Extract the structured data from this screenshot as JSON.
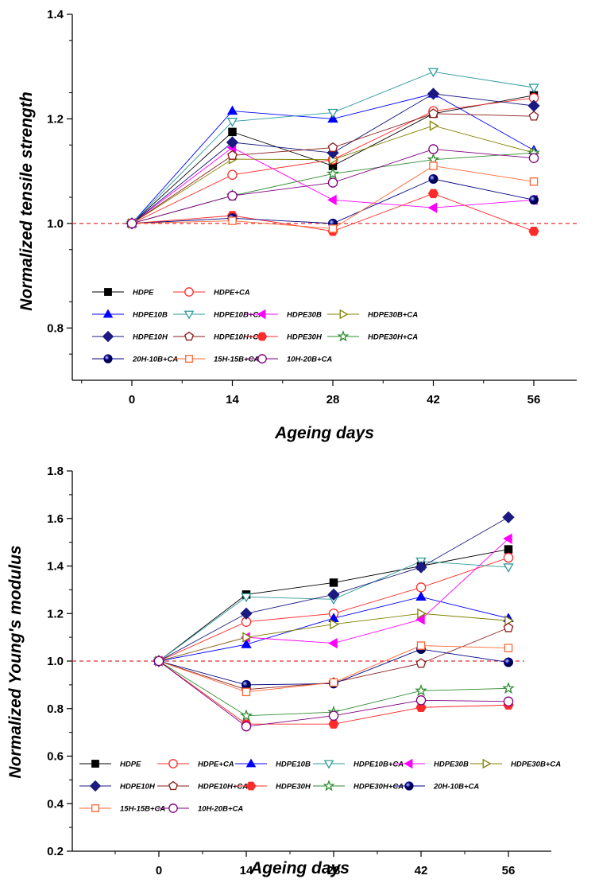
{
  "chart_data": [
    {
      "type": "line",
      "title": "",
      "xlabel": "Ageing days",
      "ylabel": "Normalized tensile strength",
      "x": [
        0,
        14,
        28,
        42,
        56
      ],
      "xlim": [
        -10,
        66
      ],
      "ylim": [
        0.7,
        1.4
      ],
      "x_ticks": [
        "0",
        "14",
        "28",
        "42",
        "56"
      ],
      "y_ticks": [
        "0.8",
        "1.0",
        "1.2",
        "1.4"
      ],
      "reference_line": 1.0,
      "grid": false,
      "legend_position": "lower-left",
      "series": [
        {
          "name": "HDPE",
          "marker": "square-filled",
          "color": "#000000",
          "values": [
            1.0,
            1.175,
            1.11,
            1.21,
            1.245
          ]
        },
        {
          "name": "HDPE+CA",
          "marker": "circle-open",
          "color": "#ff2a2a",
          "values": [
            1.0,
            1.093,
            1.122,
            1.215,
            1.24
          ]
        },
        {
          "name": "HDPE10B",
          "marker": "triangle-up-filled",
          "color": "#0000ff",
          "values": [
            1.0,
            1.215,
            1.2,
            1.248,
            1.14
          ]
        },
        {
          "name": "HDPE10B+CA",
          "marker": "triangle-down-open",
          "color": "#2e9a9a",
          "values": [
            1.0,
            1.195,
            1.212,
            1.29,
            1.26
          ]
        },
        {
          "name": "HDPE30B",
          "marker": "triangle-left-filled",
          "color": "#ff00ff",
          "values": [
            1.0,
            1.145,
            1.045,
            1.03,
            1.045
          ]
        },
        {
          "name": "HDPE30B+CA",
          "marker": "triangle-right-open",
          "color": "#808000",
          "values": [
            1.0,
            1.123,
            1.122,
            1.187,
            1.135
          ]
        },
        {
          "name": "HDPE10H",
          "marker": "diamond-filled",
          "color": "#1a1a80",
          "values": [
            1.0,
            1.155,
            1.135,
            1.248,
            1.225
          ]
        },
        {
          "name": "HDPE10H+CA",
          "marker": "pentagon-open",
          "color": "#8b1a1a",
          "values": [
            1.0,
            1.13,
            1.145,
            1.21,
            1.205
          ]
        },
        {
          "name": "HDPE30H",
          "marker": "hexagon-filled",
          "color": "#ff2a2a",
          "values": [
            1.0,
            1.015,
            0.985,
            1.057,
            0.985
          ]
        },
        {
          "name": "HDPE30H+CA",
          "marker": "star-open",
          "color": "#2e8b2e",
          "values": [
            1.0,
            1.053,
            1.095,
            1.122,
            1.135
          ]
        },
        {
          "name": "20H-10B+CA",
          "marker": "sphere-filled",
          "color": "#000080",
          "values": [
            1.0,
            1.01,
            1.0,
            1.085,
            1.045
          ]
        },
        {
          "name": "15H-15B+CA",
          "marker": "square-open",
          "color": "#ff6633",
          "values": [
            1.0,
            1.005,
            0.99,
            1.11,
            1.08
          ]
        },
        {
          "name": "10H-20B+CA",
          "marker": "circle-open",
          "color": "#800080",
          "values": [
            1.0,
            1.053,
            1.078,
            1.142,
            1.125
          ]
        }
      ]
    },
    {
      "type": "line",
      "title": "",
      "xlabel": "Ageing days",
      "ylabel": "Normalized Young's modulus",
      "x": [
        0,
        14,
        28,
        42,
        56
      ],
      "xlim": [
        -14,
        60
      ],
      "ylim": [
        0.2,
        1.8
      ],
      "x_ticks": [
        "0",
        "14",
        "28",
        "42",
        "56"
      ],
      "y_ticks": [
        "0.2",
        "0.4",
        "0.6",
        "0.8",
        "1.0",
        "1.2",
        "1.4",
        "1.6",
        "1.8"
      ],
      "reference_line": 1.0,
      "grid": false,
      "legend_position": "lower-left",
      "series": [
        {
          "name": "HDPE",
          "marker": "square-filled",
          "color": "#000000",
          "values": [
            1.0,
            1.28,
            1.33,
            1.4,
            1.47
          ]
        },
        {
          "name": "HDPE+CA",
          "marker": "circle-open",
          "color": "#ff2a2a",
          "values": [
            1.0,
            1.165,
            1.2,
            1.31,
            1.435
          ]
        },
        {
          "name": "HDPE10B",
          "marker": "triangle-up-filled",
          "color": "#0000ff",
          "values": [
            1.0,
            1.07,
            1.18,
            1.27,
            1.18
          ]
        },
        {
          "name": "HDPE10B+CA",
          "marker": "triangle-down-open",
          "color": "#2e9a9a",
          "values": [
            1.0,
            1.27,
            1.26,
            1.42,
            1.395
          ]
        },
        {
          "name": "HDPE30B",
          "marker": "triangle-left-filled",
          "color": "#ff00ff",
          "values": [
            1.0,
            1.1,
            1.075,
            1.175,
            1.515
          ]
        },
        {
          "name": "HDPE30B+CA",
          "marker": "triangle-right-open",
          "color": "#808000",
          "values": [
            1.0,
            1.1,
            1.155,
            1.2,
            1.17
          ]
        },
        {
          "name": "HDPE10H",
          "marker": "diamond-filled",
          "color": "#1a1a80",
          "values": [
            1.0,
            1.2,
            1.28,
            1.395,
            1.605
          ]
        },
        {
          "name": "HDPE10H+CA",
          "marker": "pentagon-open",
          "color": "#8b1a1a",
          "values": [
            1.0,
            0.88,
            0.91,
            0.99,
            1.14
          ]
        },
        {
          "name": "HDPE30H",
          "marker": "hexagon-filled",
          "color": "#ff2a2a",
          "values": [
            1.0,
            0.735,
            0.735,
            0.805,
            0.815
          ]
        },
        {
          "name": "HDPE30H+CA",
          "marker": "star-open",
          "color": "#2e8b2e",
          "values": [
            1.0,
            0.77,
            0.785,
            0.875,
            0.885
          ]
        },
        {
          "name": "20H-10B+CA",
          "marker": "sphere-filled",
          "color": "#000080",
          "values": [
            1.0,
            0.9,
            0.905,
            1.05,
            0.995
          ]
        },
        {
          "name": "15H-15B+CA",
          "marker": "square-open",
          "color": "#ff6633",
          "values": [
            1.0,
            0.87,
            0.91,
            1.065,
            1.055
          ]
        },
        {
          "name": "10H-20B+CA",
          "marker": "circle-open",
          "color": "#800080",
          "values": [
            1.0,
            0.725,
            0.77,
            0.835,
            0.83
          ]
        }
      ]
    }
  ]
}
